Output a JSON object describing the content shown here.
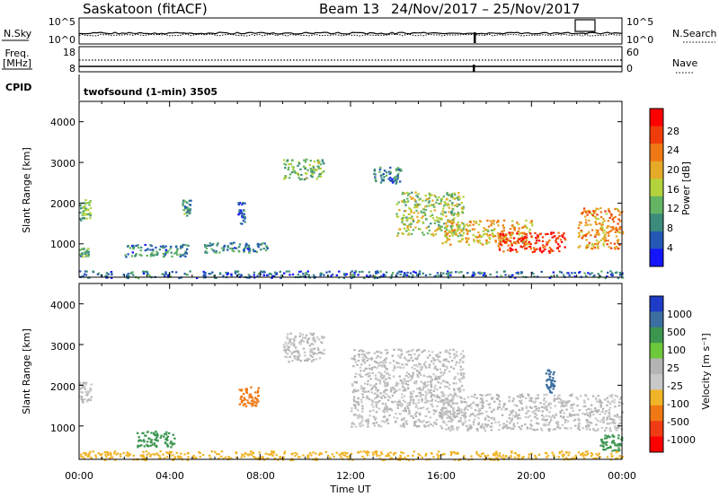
{
  "header": {
    "station": "Saskatoon (fitACF)",
    "beam_label": "Beam 13",
    "date_range": "24/Nov/2017 – 25/Nov/2017"
  },
  "noise_panel": {
    "left_label": "N.Sky",
    "left_ticks": [
      "10^5",
      "10^0"
    ],
    "right_ticks": [
      "10^5",
      "10^0"
    ],
    "right_label": "N.Search"
  },
  "freq_panel": {
    "left_label_line1": "Freq.",
    "left_label_line2": "[MHz]",
    "left_ticks": [
      "18",
      "8"
    ],
    "right_ticks": [
      "60",
      "0"
    ],
    "right_label": "Nave"
  },
  "cpid": {
    "label": "CPID",
    "mode": "twofsound (1-min) 3505"
  },
  "power_panel": {
    "ylabel": "Slant Range [km]",
    "yticks": [
      "4000",
      "3000",
      "2000",
      "1000"
    ],
    "colorbar_label": "Power [dB]",
    "colorbar_ticks": [
      "28",
      "24",
      "20",
      "16",
      "12",
      "8",
      "4"
    ],
    "colors": [
      "#1414ff",
      "#2458b4",
      "#3c8c7c",
      "#64b464",
      "#b4d23c",
      "#e6aa28",
      "#f07814",
      "#f03c0a",
      "#ff0000"
    ]
  },
  "velocity_panel": {
    "ylabel": "Slant Range [km]",
    "yticks": [
      "4000",
      "3000",
      "2000",
      "1000"
    ],
    "colorbar_label": "Velocity [m s⁻¹]",
    "colorbar_ticks": [
      "1000",
      "500",
      "100",
      "25",
      "-25",
      "-100",
      "-500",
      "-1000"
    ],
    "colors": [
      "#1e3cc8",
      "#3c6ea0",
      "#3c9650",
      "#6ec83c",
      "#b4b4b4",
      "#c8c8c8",
      "#f0b428",
      "#f07814",
      "#f03c14",
      "#ff0000"
    ]
  },
  "xaxis": {
    "ticks": [
      "00:00",
      "04:00",
      "08:00",
      "12:00",
      "16:00",
      "20:00",
      "00:00"
    ],
    "label": "Time UT"
  },
  "chart_data": {
    "type": "heatmap",
    "title": "Saskatoon (fitACF)  Beam 13  24/Nov/2017 – 25/Nov/2017",
    "xlabel": "Time UT",
    "ylabel": "Slant Range [km]",
    "xlim": [
      0,
      24
    ],
    "ylim": [
      180,
      4500
    ],
    "power_range_db": [
      0,
      30
    ],
    "velocity_range": [
      -1000,
      1000
    ],
    "power_regions": [
      {
        "t": [
          0.0,
          0.5
        ],
        "r": [
          1600,
          2100
        ],
        "db": 12
      },
      {
        "t": [
          0.0,
          0.4
        ],
        "r": [
          700,
          950
        ],
        "db": 10
      },
      {
        "t": [
          2.0,
          4.8
        ],
        "r": [
          700,
          1000
        ],
        "db": 8
      },
      {
        "t": [
          4.5,
          4.9
        ],
        "r": [
          1700,
          2100
        ],
        "db": 10
      },
      {
        "t": [
          5.5,
          8.3
        ],
        "r": [
          800,
          1050
        ],
        "db": 8
      },
      {
        "t": [
          7.0,
          7.3
        ],
        "r": [
          1500,
          2050
        ],
        "db": 6
      },
      {
        "t": [
          9.0,
          10.8
        ],
        "r": [
          2600,
          3100
        ],
        "db": 12
      },
      {
        "t": [
          13.0,
          14.2
        ],
        "r": [
          2500,
          2900
        ],
        "db": 8
      },
      {
        "t": [
          14.0,
          17.0
        ],
        "r": [
          1200,
          2300
        ],
        "db": 14
      },
      {
        "t": [
          16.0,
          20.0
        ],
        "r": [
          1000,
          1600
        ],
        "db": 18
      },
      {
        "t": [
          18.5,
          21.5
        ],
        "r": [
          800,
          1300
        ],
        "db": 26
      },
      {
        "t": [
          22.0,
          24.0
        ],
        "r": [
          900,
          1900
        ],
        "db": 20
      },
      {
        "t": [
          0.0,
          24.0
        ],
        "r": [
          180,
          350
        ],
        "db": 6
      }
    ],
    "velocity_regions": [
      {
        "t": [
          0.0,
          0.5
        ],
        "r": [
          1600,
          2100
        ],
        "v": 0
      },
      {
        "t": [
          2.5,
          4.2
        ],
        "r": [
          500,
          900
        ],
        "v": 150
      },
      {
        "t": [
          7.0,
          7.9
        ],
        "r": [
          1500,
          2000
        ],
        "v": -200
      },
      {
        "t": [
          9.0,
          10.8
        ],
        "r": [
          2600,
          3300
        ],
        "v": 0
      },
      {
        "t": [
          12.0,
          17.0
        ],
        "r": [
          1000,
          2900
        ],
        "v": 0
      },
      {
        "t": [
          16.0,
          24.0
        ],
        "r": [
          900,
          1800
        ],
        "v": 0
      },
      {
        "t": [
          20.6,
          21.0
        ],
        "r": [
          1800,
          2400
        ],
        "v": 600
      },
      {
        "t": [
          23.0,
          24.0
        ],
        "r": [
          400,
          800
        ],
        "v": 150
      },
      {
        "t": [
          0.0,
          24.0
        ],
        "r": [
          180,
          400
        ],
        "v": -80
      }
    ]
  }
}
